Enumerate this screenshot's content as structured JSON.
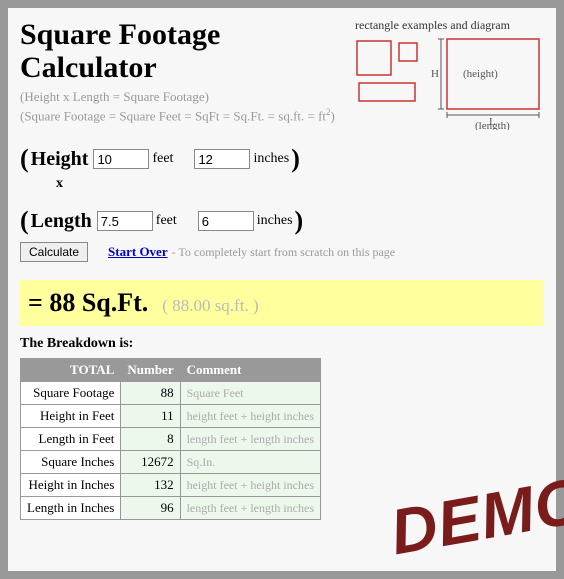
{
  "title": "Square Footage Calculator",
  "subtitle_lines": [
    "(Height x Length = Square Footage)",
    "(Square Footage = Square Feet = SqFt = Sq.Ft. = sq.ft. = ft"
  ],
  "subtitle_end": ")",
  "diagram": {
    "label": "rectangle examples and diagram",
    "rect_stroke": "#cc3333",
    "text_color": "#555555",
    "h_label": "H",
    "l_label": "L",
    "height_label": "(height)",
    "length_label": "(length)"
  },
  "inputs": {
    "height_label": "Height",
    "length_label": "Length",
    "times": "x",
    "feet_unit": "feet",
    "inches_unit": "inches",
    "height_feet": "10",
    "height_inches": "12",
    "length_feet": "7.5",
    "length_inches": "6"
  },
  "actions": {
    "calculate": "Calculate",
    "start_over": "Start Over",
    "start_over_note": " - To completely start from scratch on this page"
  },
  "result": {
    "main": "= 88 Sq.Ft.",
    "paren": "( 88.00 sq.ft. )"
  },
  "breakdown": {
    "heading": "The Breakdown is:",
    "columns": [
      "TOTAL",
      "Number",
      "Comment"
    ],
    "rows": [
      {
        "label": "Square Footage",
        "num": "88",
        "comment": "Square Feet"
      },
      {
        "label": "Height in Feet",
        "num": "11",
        "comment": "height feet + height inches"
      },
      {
        "label": "Length in Feet",
        "num": "8",
        "comment": "length feet + length inches"
      },
      {
        "label": "Square Inches",
        "num": "12672",
        "comment": "Sq.In."
      },
      {
        "label": "Height in Inches",
        "num": "132",
        "comment": "height feet + height inches"
      },
      {
        "label": "Length in Inches",
        "num": "96",
        "comment": "length feet + length inches"
      }
    ]
  },
  "stamp": "DEMO",
  "colors": {
    "result_bg": "#ffff9e",
    "stamp_color": "#7a1c1c"
  }
}
